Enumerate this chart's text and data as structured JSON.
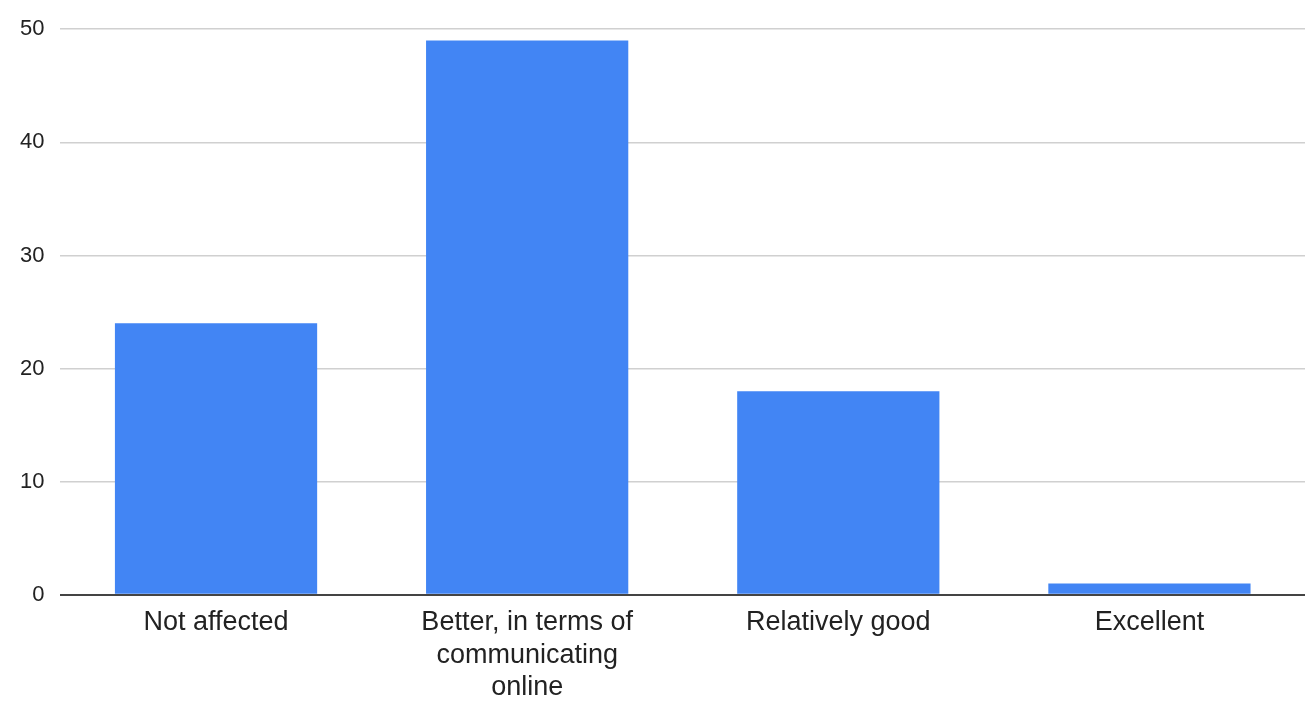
{
  "chart_data": {
    "type": "bar",
    "categories": [
      "Not affected",
      "Better, in terms of communicating online",
      "Relatively good",
      "Excellent"
    ],
    "values": [
      24,
      49,
      18,
      1
    ],
    "color": "#4285f4",
    "ylim": [
      0,
      50
    ],
    "yticks": [
      0,
      10,
      20,
      30,
      40,
      50
    ],
    "grid": "y",
    "legend": false
  }
}
